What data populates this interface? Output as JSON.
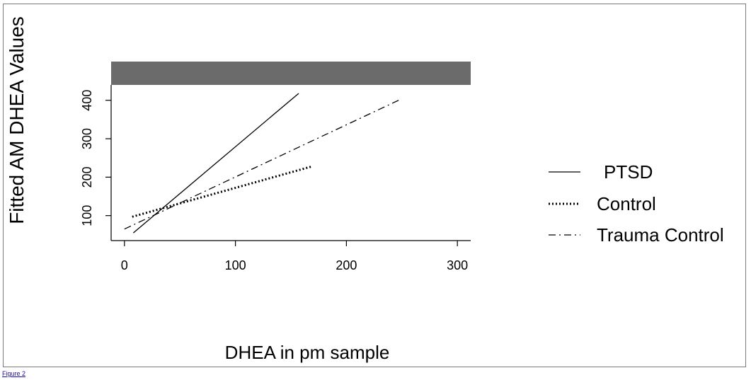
{
  "figure_link": "Figure 2",
  "chart_data": {
    "type": "line",
    "title": "",
    "xlabel": "DHEA in pm sample",
    "ylabel": "Fitted AM DHEA Values",
    "xlim": [
      -12,
      312
    ],
    "ylim": [
      35,
      440
    ],
    "x_ticks": [
      0,
      100,
      200,
      300
    ],
    "x_tick_labels": [
      "0",
      "100",
      "200",
      "300"
    ],
    "y_ticks": [
      100,
      200,
      300,
      400
    ],
    "y_tick_labels": [
      "100",
      "200",
      "300",
      "400"
    ],
    "grid": false,
    "legend_position": "right",
    "strip_color": "#6b6b6b",
    "series": [
      {
        "name": "PTSD",
        "style": "solid",
        "x": [
          8,
          157
        ],
        "y": [
          55,
          418
        ]
      },
      {
        "name": "Control",
        "style": "dotted",
        "x": [
          7,
          169
        ],
        "y": [
          97,
          228
        ]
      },
      {
        "name": "Trauma Control",
        "style": "dashdot",
        "x": [
          0,
          247
        ],
        "y": [
          65,
          400
        ]
      }
    ]
  }
}
